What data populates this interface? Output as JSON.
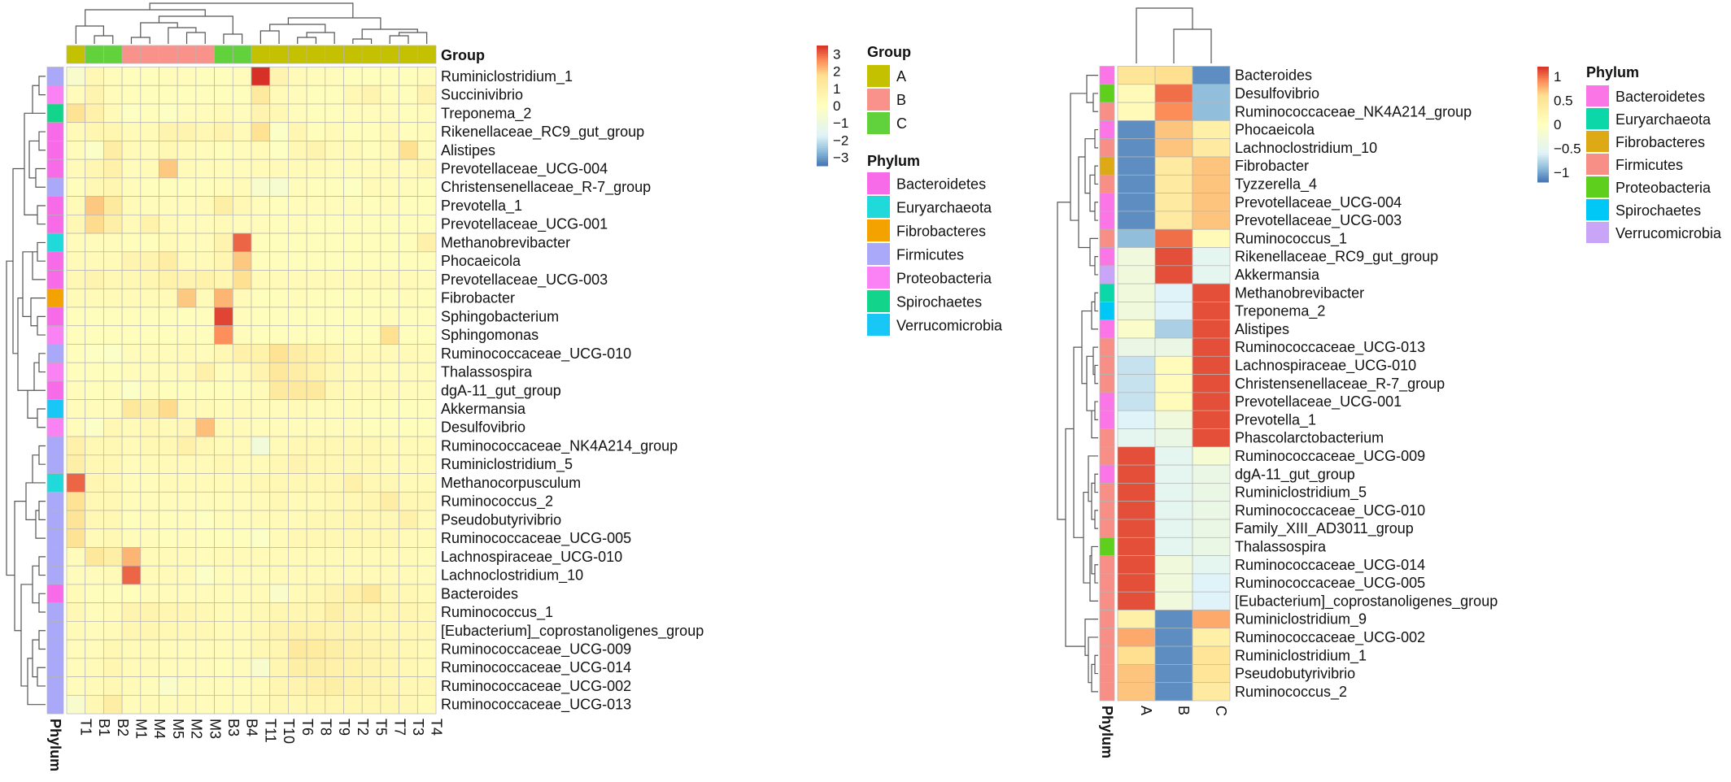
{
  "chart_data": [
    {
      "type": "heatmap",
      "columns": [
        "T1",
        "B1",
        "B2",
        "M1",
        "M4",
        "M5",
        "M2",
        "M3",
        "B3",
        "B4",
        "T11",
        "T10",
        "T6",
        "T8",
        "T9",
        "T2",
        "T5",
        "T7",
        "T3",
        "T4"
      ],
      "column_groups": [
        "A",
        "C",
        "C",
        "B",
        "B",
        "B",
        "B",
        "B",
        "C",
        "C",
        "A",
        "A",
        "A",
        "A",
        "A",
        "A",
        "A",
        "A",
        "A",
        "A"
      ],
      "rows": [
        "Ruminiclostridium_1",
        "Succinivibrio",
        "Treponema_2",
        "Rikenellaceae_RC9_gut_group",
        "Alistipes",
        "Prevotellaceae_UCG-004",
        "Christensenellaceae_R-7_group",
        "Prevotella_1",
        "Prevotellaceae_UCG-001",
        "Methanobrevibacter",
        "Phocaeicola",
        "Prevotellaceae_UCG-003",
        "Fibrobacter",
        "Sphingobacterium",
        "Sphingomonas",
        "Ruminococcaceae_UCG-010",
        "Thalassospira",
        "dgA-11_gut_group",
        "Akkermansia",
        "Desulfovibrio",
        "Ruminococcaceae_NK4A214_group",
        "Ruminiclostridium_5",
        "Methanocorpusculum",
        "Ruminococcus_2",
        "Pseudobutyrivibrio",
        "Ruminococcaceae_UCG-005",
        "Lachnospiraceae_UCG-010",
        "Lachnoclostridium_10",
        "Bacteroides",
        "Ruminococcus_1",
        "[Eubacterium]_coprostanoligenes_group",
        "Ruminococcaceae_UCG-009",
        "Ruminococcaceae_UCG-014",
        "Ruminococcaceae_UCG-002",
        "Ruminococcaceae_UCG-013"
      ],
      "row_phylum": [
        "Firmicutes",
        "Proteobacteria",
        "Spirochaetes",
        "Bacteroidetes",
        "Bacteroidetes",
        "Bacteroidetes",
        "Firmicutes",
        "Bacteroidetes",
        "Bacteroidetes",
        "Euryarchaeota",
        "Bacteroidetes",
        "Bacteroidetes",
        "Fibrobacteres",
        "Bacteroidetes",
        "Proteobacteria",
        "Firmicutes",
        "Proteobacteria",
        "Bacteroidetes",
        "Verrucomicrobia",
        "Proteobacteria",
        "Firmicutes",
        "Firmicutes",
        "Euryarchaeota",
        "Firmicutes",
        "Firmicutes",
        "Firmicutes",
        "Firmicutes",
        "Firmicutes",
        "Bacteroidetes",
        "Firmicutes",
        "Firmicutes",
        "Firmicutes",
        "Firmicutes",
        "Firmicutes",
        "Firmicutes"
      ],
      "values": [
        [
          -0.4,
          0.4,
          0.2,
          0.1,
          0.1,
          0.2,
          0.2,
          0.1,
          0.1,
          0.2,
          3.5,
          0.6,
          0.3,
          0.2,
          0.2,
          0.1,
          0.1,
          0.1,
          0.1,
          0.2
        ],
        [
          0.2,
          0.6,
          0.2,
          0.1,
          0.1,
          0.1,
          0.1,
          0.1,
          0.1,
          0.1,
          1.2,
          0.3,
          0.2,
          0.1,
          0.1,
          0.4,
          0.6,
          0.2,
          0.1,
          0.6
        ],
        [
          1.6,
          0.8,
          0.3,
          -0.1,
          0.1,
          -0.1,
          0.2,
          0.2,
          0.3,
          0.2,
          0.6,
          0.4,
          0.2,
          0.1,
          0.1,
          0.2,
          0.2,
          0.2,
          0.1,
          0.2
        ],
        [
          0.3,
          0.5,
          0.5,
          0.3,
          0.3,
          0.6,
          0.6,
          0.4,
          0.6,
          0.3,
          1.6,
          -0.2,
          0.5,
          0.1,
          0.3,
          0.1,
          0.1,
          0.3,
          0.1,
          0.2
        ],
        [
          0.2,
          -0.2,
          1.0,
          0.3,
          0.2,
          0.4,
          0.3,
          0.2,
          0.1,
          0.2,
          0.3,
          -0.1,
          0.4,
          0.6,
          0.3,
          0.3,
          0.1,
          0.3,
          1.7,
          0.2
        ],
        [
          0.3,
          0.5,
          0.8,
          0.2,
          0.3,
          2.0,
          0.3,
          0.2,
          0.2,
          0.2,
          0.3,
          0.3,
          0.3,
          0.3,
          0.2,
          0.2,
          0.2,
          0.3,
          0.2,
          0.4
        ],
        [
          0.1,
          0.4,
          0.5,
          0.2,
          0.1,
          0.1,
          0.1,
          0.1,
          0.2,
          0.3,
          -0.4,
          -0.5,
          0.2,
          0.1,
          0.1,
          -0.1,
          0.3,
          0.2,
          0.2,
          0.1
        ],
        [
          0.3,
          2.0,
          1.2,
          0.3,
          0.2,
          0.2,
          0.2,
          0.3,
          0.9,
          0.4,
          0.2,
          0.1,
          0.2,
          0.2,
          0.2,
          0.2,
          0.1,
          0.2,
          0.1,
          0.1
        ],
        [
          0.4,
          1.8,
          0.9,
          0.3,
          0.7,
          0.3,
          0.2,
          0.2,
          0.3,
          0.2,
          0.2,
          0.1,
          0.2,
          0.1,
          0.1,
          0.1,
          0.1,
          0.1,
          0.1,
          0.1
        ],
        [
          0.2,
          0.2,
          0.2,
          0.1,
          0.1,
          0.3,
          0.2,
          0.2,
          0.6,
          3.0,
          0.1,
          0.1,
          0.1,
          0.1,
          0.1,
          0.1,
          0.1,
          0.1,
          0.1,
          0.8
        ],
        [
          0.3,
          0.3,
          0.3,
          0.6,
          0.6,
          1.0,
          0.3,
          0.3,
          0.5,
          2.0,
          0.1,
          0.1,
          0.1,
          0.1,
          0.1,
          0.1,
          0.1,
          0.1,
          0.1,
          0.1
        ],
        [
          0.4,
          0.6,
          0.4,
          0.4,
          0.5,
          0.7,
          0.6,
          0.7,
          0.5,
          1.7,
          0.3,
          0.3,
          0.3,
          0.3,
          0.3,
          0.3,
          0.3,
          0.3,
          0.3,
          0.2
        ],
        [
          0.3,
          0.3,
          0.3,
          0.3,
          0.3,
          0.3,
          2.0,
          0.3,
          2.2,
          0.3,
          0.1,
          0.1,
          0.2,
          0.1,
          0.1,
          0.1,
          0.1,
          0.1,
          0.2,
          0.1
        ],
        [
          0.1,
          0.1,
          0.1,
          0.1,
          0.1,
          0.1,
          0.1,
          0.1,
          3.3,
          0.2,
          0.1,
          0.1,
          0.1,
          0.1,
          0.1,
          0.1,
          0.1,
          0.2,
          0.1,
          0.1
        ],
        [
          0.1,
          0.1,
          0.1,
          0.1,
          0.1,
          0.1,
          0.2,
          0.1,
          2.6,
          0.2,
          0.1,
          0.1,
          0.1,
          0.1,
          0.1,
          0.1,
          0.1,
          1.7,
          0.1,
          0.1
        ],
        [
          0.1,
          -0.1,
          -0.2,
          0.2,
          0.2,
          0.2,
          0.3,
          0.2,
          0.4,
          0.8,
          0.7,
          1.6,
          1.0,
          0.7,
          0.5,
          0.3,
          0.3,
          0.3,
          0.3,
          0.2
        ],
        [
          0.1,
          0.1,
          0.1,
          0.2,
          0.2,
          0.2,
          0.3,
          0.8,
          0.2,
          0.3,
          0.6,
          1.3,
          1.0,
          0.7,
          0.4,
          0.3,
          0.3,
          0.2,
          0.2,
          0.2
        ],
        [
          0.2,
          0.1,
          0.2,
          -0.2,
          0.2,
          0.1,
          0.1,
          0.1,
          0.1,
          0.1,
          0.3,
          1.2,
          1.2,
          1.2,
          0.4,
          0.3,
          0.3,
          0.3,
          0.2,
          0.2
        ],
        [
          0.2,
          0.2,
          0.2,
          1.3,
          0.9,
          1.8,
          0.3,
          0.3,
          0.2,
          0.3,
          0.2,
          0.2,
          0.3,
          0.2,
          0.2,
          0.2,
          0.1,
          0.1,
          0.1,
          0.1
        ],
        [
          0.2,
          -0.2,
          0.4,
          0.3,
          0.4,
          0.3,
          0.4,
          2.1,
          0.3,
          0.3,
          0.2,
          0.2,
          0.2,
          0.2,
          0.2,
          0.2,
          0.1,
          0.1,
          0.1,
          0.1
        ],
        [
          0.8,
          0.4,
          0.4,
          0.3,
          0.4,
          0.4,
          0.8,
          0.4,
          0.3,
          0.3,
          -0.8,
          0.3,
          0.4,
          0.4,
          0.4,
          0.4,
          0.4,
          0.3,
          0.3,
          0.3
        ],
        [
          0.9,
          0.4,
          0.4,
          0.2,
          0.3,
          0.3,
          0.3,
          0.3,
          0.4,
          0.3,
          0.3,
          0.4,
          0.6,
          0.4,
          0.4,
          0.4,
          0.4,
          0.3,
          0.3,
          0.3
        ],
        [
          3.0,
          0.5,
          0.4,
          0.2,
          0.2,
          0.3,
          0.3,
          0.3,
          0.3,
          0.3,
          0.4,
          0.4,
          0.4,
          0.4,
          0.4,
          0.8,
          0.4,
          0.4,
          0.3,
          0.3
        ],
        [
          1.6,
          0.4,
          0.4,
          0.2,
          0.2,
          0.2,
          0.2,
          0.2,
          0.2,
          0.2,
          0.3,
          0.4,
          0.3,
          0.3,
          0.4,
          0.4,
          0.5,
          1.0,
          0.4,
          0.4
        ],
        [
          1.5,
          0.4,
          0.4,
          0.1,
          0.2,
          0.1,
          0.2,
          -0.1,
          0.2,
          0.2,
          0.3,
          0.3,
          0.3,
          0.4,
          0.4,
          0.5,
          0.4,
          0.4,
          0.8,
          0.3
        ],
        [
          1.6,
          0.3,
          0.4,
          0.2,
          0.2,
          0.1,
          0.2,
          0.1,
          0.1,
          0.1,
          -0.2,
          0.3,
          0.4,
          0.4,
          0.4,
          0.4,
          0.4,
          0.4,
          0.3,
          0.3
        ],
        [
          0.2,
          1.3,
          0.9,
          2.2,
          0.3,
          0.3,
          0.3,
          0.2,
          0.3,
          0.3,
          0.3,
          0.3,
          0.3,
          0.3,
          0.3,
          0.3,
          0.3,
          0.3,
          0.3,
          0.2
        ],
        [
          0.2,
          0.2,
          0.3,
          3.0,
          0.3,
          0.3,
          0.3,
          -0.2,
          0.2,
          0.2,
          0.2,
          0.3,
          0.3,
          0.3,
          0.3,
          0.3,
          0.3,
          0.3,
          0.3,
          0.2
        ],
        [
          0.3,
          0.1,
          0.1,
          0.1,
          0.2,
          0.2,
          0.2,
          0.2,
          0.2,
          0.2,
          0.3,
          -0.3,
          0.3,
          0.4,
          0.6,
          0.8,
          1.3,
          0.4,
          0.4,
          0.3
        ],
        [
          0.4,
          0.2,
          0.3,
          0.6,
          0.6,
          0.5,
          0.5,
          0.4,
          0.3,
          0.3,
          0.4,
          0.5,
          0.5,
          0.5,
          0.9,
          0.6,
          0.5,
          0.5,
          0.5,
          0.4
        ],
        [
          0.3,
          0.2,
          0.3,
          0.5,
          0.5,
          0.4,
          0.4,
          0.4,
          0.3,
          0.3,
          0.4,
          0.6,
          0.7,
          0.7,
          0.6,
          0.6,
          0.5,
          0.4,
          0.4,
          0.4
        ],
        [
          0.2,
          0.2,
          0.4,
          0.3,
          0.3,
          0.2,
          0.2,
          0.2,
          0.2,
          0.2,
          0.4,
          0.5,
          1.2,
          1.1,
          0.9,
          0.7,
          0.6,
          0.5,
          0.4,
          0.3
        ],
        [
          0.2,
          0.3,
          0.5,
          0.3,
          0.3,
          0.2,
          0.2,
          0.2,
          0.1,
          0.2,
          -0.4,
          0.5,
          0.9,
          0.9,
          0.8,
          0.7,
          0.6,
          0.5,
          0.4,
          0.3
        ],
        [
          0.2,
          0.3,
          0.4,
          0.3,
          0.2,
          -0.3,
          0.2,
          0.2,
          0.2,
          0.2,
          0.3,
          0.5,
          0.6,
          0.8,
          0.9,
          0.7,
          0.6,
          0.5,
          0.4,
          0.4
        ],
        [
          -0.4,
          0.4,
          1.0,
          0.2,
          0.3,
          0.2,
          0.3,
          0.2,
          0.2,
          0.2,
          0.3,
          0.4,
          0.4,
          0.5,
          0.5,
          0.5,
          0.5,
          0.5,
          0.4,
          0.3
        ]
      ],
      "group_legend_title": "Group",
      "groups": [
        "A",
        "B",
        "C"
      ],
      "group_colors": [
        "#C4C100",
        "#F9928B",
        "#62D23C"
      ],
      "phylum_legend_title": "Phylum",
      "phyla": [
        "Bacteroidetes",
        "Euryarchaeota",
        "Fibrobacteres",
        "Firmicutes",
        "Proteobacteria",
        "Spirochaetes",
        "Verrucomicrobia"
      ],
      "phylum_colors": [
        "#F76BE8",
        "#1FD9DB",
        "#F3A200",
        "#A9A8F9",
        "#FB82F5",
        "#12D48B",
        "#19C7F7"
      ],
      "colorbar_ticks": [
        3,
        2,
        1,
        0,
        -1,
        -2,
        -3
      ],
      "colorbar_range": [
        -3.5,
        3.5
      ],
      "axis_title_rows_annotation": "Phylum",
      "axis_title_cols_annotation": "Group"
    },
    {
      "type": "heatmap",
      "columns": [
        "A",
        "B",
        "C"
      ],
      "rows": [
        "Bacteroides",
        "Desulfovibrio",
        "Ruminococcaceae_NK4A214_group",
        "Phocaeicola",
        "Lachnoclostridium_10",
        "Fibrobacter",
        "Tyzzerella_4",
        "Prevotellaceae_UCG-004",
        "Prevotellaceae_UCG-003",
        "Ruminococcus_1",
        "Rikenellaceae_RC9_gut_group",
        "Akkermansia",
        "Methanobrevibacter",
        "Treponema_2",
        "Alistipes",
        "Ruminococcaceae_UCG-013",
        "Lachnospiraceae_UCG-010",
        "Christensenellaceae_R-7_group",
        "Prevotellaceae_UCG-001",
        "Prevotella_1",
        "Phascolarctobacterium",
        "Ruminococcaceae_UCG-009",
        "dgA-11_gut_group",
        "Ruminiclostridium_5",
        "Ruminococcaceae_UCG-010",
        "Family_XIII_AD3011_group",
        "Thalassospira",
        "Ruminococcaceae_UCG-014",
        "Ruminococcaceae_UCG-005",
        "[Eubacterium]_coprostanoligenes_group",
        "Ruminiclostridium_9",
        "Ruminococcaceae_UCG-002",
        "Ruminiclostridium_1",
        "Pseudobutyrivibrio",
        "Ruminococcus_2"
      ],
      "row_phylum": [
        "Bacteroidetes",
        "Proteobacteria",
        "Firmicutes",
        "Bacteroidetes",
        "Firmicutes",
        "Fibrobacteres",
        "Firmicutes",
        "Bacteroidetes",
        "Bacteroidetes",
        "Firmicutes",
        "Bacteroidetes",
        "Verrucomicrobia",
        "Euryarchaeota",
        "Spirochaetes",
        "Bacteroidetes",
        "Firmicutes",
        "Firmicutes",
        "Firmicutes",
        "Bacteroidetes",
        "Bacteroidetes",
        "Firmicutes",
        "Firmicutes",
        "Bacteroidetes",
        "Firmicutes",
        "Firmicutes",
        "Firmicutes",
        "Proteobacteria",
        "Firmicutes",
        "Firmicutes",
        "Firmicutes",
        "Firmicutes",
        "Firmicutes",
        "Firmicutes",
        "Firmicutes",
        "Firmicutes"
      ],
      "values": [
        [
          0.5,
          0.6,
          -1.1
        ],
        [
          0.1,
          1.0,
          -0.9
        ],
        [
          0.1,
          0.9,
          -0.9
        ],
        [
          -1.1,
          0.7,
          0.3
        ],
        [
          -1.1,
          0.7,
          0.4
        ],
        [
          -1.1,
          0.4,
          0.7
        ],
        [
          -1.1,
          0.4,
          0.7
        ],
        [
          -1.1,
          0.4,
          0.7
        ],
        [
          -1.1,
          0.4,
          0.7
        ],
        [
          -0.9,
          1.0,
          0.1
        ],
        [
          -0.3,
          1.1,
          -0.5
        ],
        [
          -0.3,
          1.1,
          -0.5
        ],
        [
          -0.3,
          -0.6,
          1.1
        ],
        [
          -0.3,
          -0.6,
          1.1
        ],
        [
          -0.1,
          -0.8,
          1.1
        ],
        [
          -0.4,
          -0.4,
          1.1
        ],
        [
          -0.7,
          0.05,
          1.1
        ],
        [
          -0.7,
          0.05,
          1.1
        ],
        [
          -0.7,
          0.05,
          1.1
        ],
        [
          -0.6,
          -0.3,
          1.1
        ],
        [
          -0.5,
          -0.4,
          1.1
        ],
        [
          1.1,
          -0.5,
          -0.2
        ],
        [
          1.1,
          -0.5,
          -0.4
        ],
        [
          1.1,
          -0.5,
          -0.4
        ],
        [
          1.1,
          -0.5,
          -0.4
        ],
        [
          1.1,
          -0.5,
          -0.4
        ],
        [
          1.1,
          -0.5,
          -0.4
        ],
        [
          1.1,
          -0.3,
          -0.5
        ],
        [
          1.1,
          -0.3,
          -0.6
        ],
        [
          1.1,
          -0.3,
          -0.6
        ],
        [
          0.3,
          -1.1,
          0.8
        ],
        [
          0.8,
          -1.1,
          0.3
        ],
        [
          0.6,
          -1.1,
          0.5
        ],
        [
          0.7,
          -1.1,
          0.5
        ],
        [
          0.7,
          -1.1,
          0.4
        ]
      ],
      "phylum_legend_title": "Phylum",
      "phyla": [
        "Bacteroidetes",
        "Euryarchaeota",
        "Fibrobacteres",
        "Firmicutes",
        "Proteobacteria",
        "Spirochaetes",
        "Verrucomicrobia"
      ],
      "phylum_colors": [
        "#FB75E6",
        "#0BD7A8",
        "#DDAA16",
        "#F78F86",
        "#5DCF1C",
        "#00C8F6",
        "#C9A5F8"
      ],
      "colorbar_ticks": [
        1,
        0.5,
        0,
        -0.5,
        -1
      ],
      "colorbar_range": [
        -1.2,
        1.2
      ],
      "axis_title_rows_annotation": "Phylum"
    }
  ]
}
